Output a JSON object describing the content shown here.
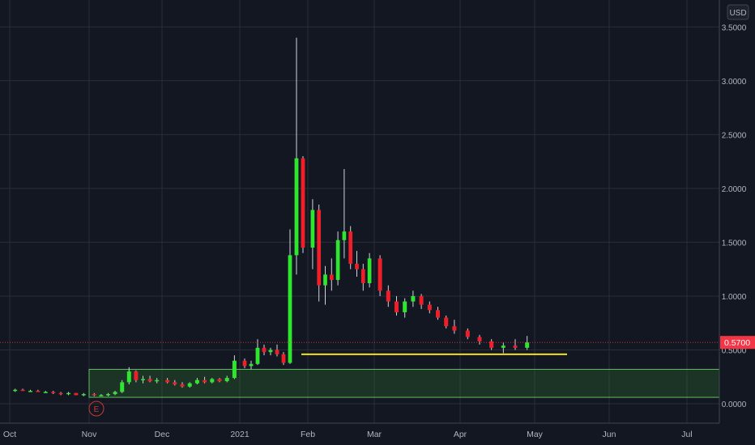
{
  "currency_button_label": "USD",
  "price_label": "0.5700",
  "earnings_marker_label": "E",
  "colors": {
    "background": "#131722",
    "grid": "#2a2e39",
    "axis_text": "#b2b5be",
    "up": "#2ee62e",
    "down": "#ef1f2a",
    "wick": "#d1d4dc",
    "support_line": "#f3e21a",
    "zone_fill": "#2f6b2f",
    "zone_border": "#5fbf5f",
    "price_tag": "#f23645",
    "earnings_marker": "#c83a3a"
  },
  "chart_data": {
    "type": "candlestick",
    "title": "",
    "xlabel": "",
    "ylabel": "",
    "y_axis_side": "right",
    "ylim": [
      -0.18,
      3.75
    ],
    "y_ticks": [
      "0.0000",
      "0.5000",
      "1.0000",
      "1.5000",
      "2.0000",
      "2.5000",
      "3.0000",
      "3.5000"
    ],
    "x_ticks": [
      "Oct",
      "Nov",
      "Dec",
      "2021",
      "Feb",
      "Mar",
      "Apr",
      "May",
      "Jun",
      "Jul"
    ],
    "grid": true,
    "last_price": 0.57,
    "support_level": 0.46,
    "accumulation_zone": [
      0.06,
      0.32
    ],
    "earnings_event_month": "Nov",
    "series": [
      {
        "candles": [
          [
            "Oct",
            0.12,
            0.14,
            0.11,
            0.13
          ],
          [
            "Oct",
            0.13,
            0.14,
            0.12,
            0.12
          ],
          [
            "Oct",
            0.12,
            0.13,
            0.11,
            0.12
          ],
          [
            "Oct",
            0.12,
            0.13,
            0.11,
            0.11
          ],
          [
            "Oct",
            0.11,
            0.12,
            0.1,
            0.11
          ],
          [
            "Oct",
            0.11,
            0.12,
            0.09,
            0.1
          ],
          [
            "Oct",
            0.1,
            0.11,
            0.08,
            0.09
          ],
          [
            "Oct",
            0.09,
            0.11,
            0.08,
            0.1
          ],
          [
            "Oct",
            0.1,
            0.1,
            0.08,
            0.08
          ],
          [
            "Oct",
            0.08,
            0.1,
            0.07,
            0.09
          ],
          [
            "Nov",
            0.09,
            0.1,
            0.07,
            0.08
          ],
          [
            "Nov",
            0.08,
            0.09,
            0.07,
            0.08
          ],
          [
            "Nov",
            0.08,
            0.1,
            0.07,
            0.09
          ],
          [
            "Nov",
            0.09,
            0.12,
            0.08,
            0.11
          ],
          [
            "Nov",
            0.11,
            0.22,
            0.1,
            0.2
          ],
          [
            "Nov",
            0.2,
            0.34,
            0.18,
            0.3
          ],
          [
            "Nov",
            0.3,
            0.31,
            0.2,
            0.22
          ],
          [
            "Nov",
            0.22,
            0.26,
            0.19,
            0.23
          ],
          [
            "Nov",
            0.23,
            0.26,
            0.2,
            0.21
          ],
          [
            "Nov",
            0.21,
            0.24,
            0.19,
            0.22
          ],
          [
            "Dec",
            0.22,
            0.24,
            0.19,
            0.2
          ],
          [
            "Dec",
            0.2,
            0.22,
            0.17,
            0.18
          ],
          [
            "Dec",
            0.18,
            0.2,
            0.15,
            0.16
          ],
          [
            "Dec",
            0.16,
            0.2,
            0.15,
            0.19
          ],
          [
            "Dec",
            0.19,
            0.24,
            0.18,
            0.22
          ],
          [
            "Dec",
            0.22,
            0.25,
            0.19,
            0.2
          ],
          [
            "Dec",
            0.2,
            0.24,
            0.19,
            0.23
          ],
          [
            "Dec",
            0.23,
            0.24,
            0.2,
            0.21
          ],
          [
            "Dec",
            0.21,
            0.26,
            0.2,
            0.24
          ],
          [
            "Dec",
            0.24,
            0.45,
            0.23,
            0.4
          ],
          [
            "2021",
            0.4,
            0.42,
            0.33,
            0.35
          ],
          [
            "2021",
            0.35,
            0.4,
            0.32,
            0.37
          ],
          [
            "2021",
            0.37,
            0.6,
            0.36,
            0.52
          ],
          [
            "2021",
            0.52,
            0.55,
            0.45,
            0.48
          ],
          [
            "2021",
            0.48,
            0.52,
            0.45,
            0.5
          ],
          [
            "2021",
            0.5,
            0.55,
            0.44,
            0.46
          ],
          [
            "2021",
            0.46,
            0.48,
            0.36,
            0.38
          ],
          [
            "2021",
            0.38,
            1.62,
            0.37,
            1.38
          ],
          [
            "2021",
            1.38,
            3.4,
            1.2,
            2.28
          ],
          [
            "2021",
            2.28,
            2.3,
            1.4,
            1.45
          ],
          [
            "Feb",
            1.45,
            1.9,
            1.25,
            1.8
          ],
          [
            "Feb",
            1.8,
            1.85,
            0.95,
            1.1
          ],
          [
            "Feb",
            1.1,
            1.28,
            0.92,
            1.2
          ],
          [
            "Feb",
            1.2,
            1.35,
            1.05,
            1.15
          ],
          [
            "Feb",
            1.15,
            1.6,
            1.1,
            1.52
          ],
          [
            "Feb",
            1.52,
            2.18,
            1.35,
            1.6
          ],
          [
            "Feb",
            1.6,
            1.65,
            1.25,
            1.3
          ],
          [
            "Feb",
            1.3,
            1.42,
            1.18,
            1.25
          ],
          [
            "Feb",
            1.25,
            1.3,
            1.05,
            1.12
          ],
          [
            "Feb",
            1.12,
            1.4,
            1.08,
            1.35
          ],
          [
            "Mar",
            1.35,
            1.38,
            1.0,
            1.05
          ],
          [
            "Mar",
            1.05,
            1.1,
            0.9,
            0.95
          ],
          [
            "Mar",
            0.95,
            1.0,
            0.82,
            0.85
          ],
          [
            "Mar",
            0.85,
            0.98,
            0.8,
            0.95
          ],
          [
            "Mar",
            0.95,
            1.05,
            0.9,
            1.0
          ],
          [
            "Mar",
            1.0,
            1.02,
            0.88,
            0.92
          ],
          [
            "Mar",
            0.92,
            0.95,
            0.84,
            0.87
          ],
          [
            "Mar",
            0.87,
            0.9,
            0.78,
            0.8
          ],
          [
            "Mar",
            0.8,
            0.82,
            0.7,
            0.72
          ],
          [
            "Mar",
            0.72,
            0.78,
            0.65,
            0.68
          ],
          [
            "Apr",
            0.68,
            0.7,
            0.6,
            0.62
          ],
          [
            "Apr",
            0.62,
            0.64,
            0.55,
            0.58
          ],
          [
            "Apr",
            0.58,
            0.6,
            0.5,
            0.52
          ],
          [
            "Apr",
            0.52,
            0.57,
            0.47,
            0.54
          ],
          [
            "Apr",
            0.54,
            0.6,
            0.5,
            0.52
          ],
          [
            "Apr",
            0.52,
            0.63,
            0.5,
            0.57
          ]
        ]
      }
    ]
  }
}
